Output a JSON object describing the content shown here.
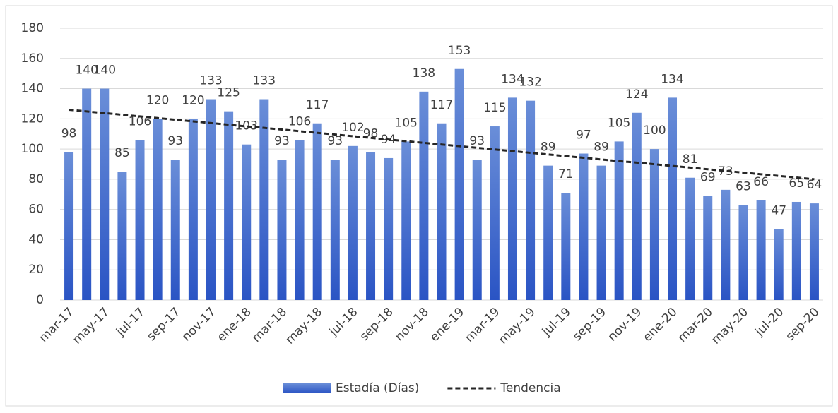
{
  "chart_data": {
    "type": "bar",
    "categories": [
      "mar-17",
      null,
      "may-17",
      null,
      "jul-17",
      null,
      "sep-17",
      null,
      "nov-17",
      null,
      "ene-18",
      null,
      "mar-18",
      null,
      "may-18",
      null,
      "jul-18",
      null,
      "sep-18",
      null,
      "nov-18",
      null,
      "ene-19",
      null,
      "mar-19",
      null,
      "may-19",
      null,
      "jul-19",
      null,
      "sep-19",
      null,
      "nov-19",
      null,
      "ene-20",
      null,
      "mar-20",
      null,
      "may-20",
      null,
      "jul-20",
      null,
      "sep-20"
    ],
    "series": [
      {
        "name": "Estadía (Días)",
        "type": "bar",
        "color": "#4472c4",
        "values": [
          98,
          140,
          140,
          85,
          106,
          120,
          93,
          120,
          133,
          125,
          103,
          133,
          93,
          106,
          117,
          93,
          102,
          98,
          94,
          105,
          138,
          117,
          153,
          93,
          115,
          134,
          132,
          89,
          71,
          97,
          89,
          105,
          124,
          100,
          134,
          81,
          69,
          73,
          63,
          66,
          47,
          65,
          64
        ]
      },
      {
        "name": "Tendencia",
        "type": "line",
        "color": "#262626",
        "values": [
          126.0,
          124.9,
          123.8,
          122.7,
          121.6,
          120.5,
          119.4,
          118.3,
          117.2,
          116.1,
          115.0,
          114.0,
          112.9,
          111.8,
          110.7,
          109.6,
          108.5,
          107.4,
          106.3,
          105.2,
          104.1,
          103.0,
          101.9,
          100.8,
          99.7,
          98.6,
          97.5,
          96.4,
          95.3,
          94.2,
          93.1,
          92.0,
          91.0,
          89.9,
          88.8,
          87.7,
          86.6,
          85.5,
          84.4,
          83.3,
          82.2,
          81.1,
          80.0
        ]
      }
    ],
    "ylim": [
      0,
      180
    ],
    "yticks": [
      0,
      20,
      40,
      60,
      80,
      100,
      120,
      140,
      160,
      180
    ],
    "grid": true,
    "legend": "bottom"
  }
}
